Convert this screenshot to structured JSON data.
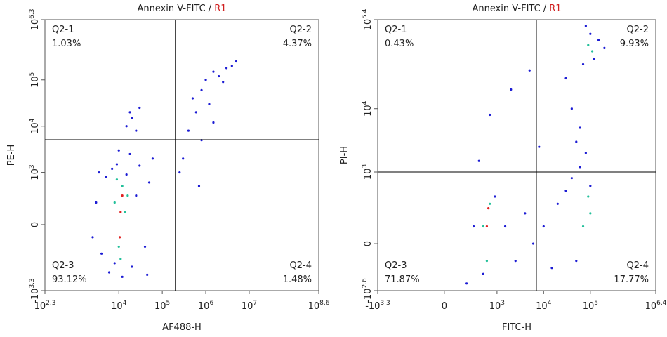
{
  "chart_data": [
    {
      "type": "scatter",
      "title": "Annexin V-FITC /",
      "population": "R1",
      "x_label": "AF488-H",
      "y_label": "PE-H",
      "xscale": "log",
      "yscale": "biex",
      "xlim": [
        199.5,
        398107171
      ],
      "ylim": [
        -1995.3,
        1995262
      ],
      "xticks": [
        {
          "value": 199.5,
          "label": "10",
          "exp": "2.3"
        },
        {
          "value": 10000,
          "label": "10",
          "exp": "4"
        },
        {
          "value": 100000,
          "label": "10",
          "exp": "5"
        },
        {
          "value": 1000000,
          "label": "10",
          "exp": "6"
        },
        {
          "value": 10000000,
          "label": "10",
          "exp": "7"
        },
        {
          "value": 398107171,
          "label": "10",
          "exp": "8.6"
        }
      ],
      "yticks": [
        {
          "value": -1995.3,
          "label": "-10",
          "exp": "3.3"
        },
        0,
        {
          "value": 1000,
          "label": "10",
          "exp": "3"
        },
        {
          "value": 10000,
          "label": "10",
          "exp": "4"
        },
        {
          "value": 100000,
          "label": "10",
          "exp": "5"
        },
        {
          "value": 1995262,
          "label": "10",
          "exp": "6.3"
        }
      ],
      "gate": {
        "x": 200000,
        "y": 5100
      },
      "quadrants": {
        "names": [
          "Q2-1",
          "Q2-2",
          "Q2-3",
          "Q2-4"
        ],
        "values": [
          1.03,
          4.37,
          93.12,
          1.48
        ],
        "value_labels": [
          "1.03%",
          "4.37%",
          "93.12%",
          "1.48%"
        ]
      },
      "series": [
        {
          "color": "#1c1cd4",
          "x": [
            3000,
            4000,
            5000,
            6000,
            7000,
            8000,
            9000,
            12000,
            15000,
            20000,
            25000,
            30000,
            40000,
            50000,
            3500,
            18000,
            60000,
            45000,
            2500,
            10000,
            1000000,
            1500000,
            2000000,
            3000000,
            4000000,
            800000,
            2500000,
            5000000,
            300000,
            400000,
            600000,
            500000,
            800000,
            1200000,
            250000,
            700000,
            1500000,
            15000,
            20000,
            18000,
            25000,
            30000
          ],
          "y": [
            200,
            -300,
            800,
            -800,
            1200,
            -500,
            1500,
            -1000,
            900,
            -600,
            300,
            1400,
            -200,
            600,
            1000,
            2500,
            2000,
            -900,
            -100,
            3000,
            100000,
            150000,
            120000,
            180000,
            200000,
            60000,
            90000,
            250000,
            2000,
            8000,
            20000,
            40000,
            5000,
            30000,
            1000,
            500,
            12000,
            10000,
            15000,
            20000,
            8000,
            25000
          ]
        },
        {
          "color": "#22c09a",
          "x": [
            8000,
            10000,
            12000,
            14000,
            9000,
            11000,
            16000
          ],
          "y": [
            200,
            -200,
            500,
            100,
            700,
            -400,
            300
          ]
        },
        {
          "color": "#e02020",
          "x": [
            11000,
            12000,
            10500
          ],
          "y": [
            100,
            300,
            -100
          ]
        }
      ]
    },
    {
      "type": "scatter",
      "title": "Annexin V-FITC /",
      "population": "R1",
      "x_label": "FITC-H",
      "y_label": "PI-H",
      "xscale": "biex",
      "yscale": "biex",
      "xlim": [
        -1995.3,
        2511886
      ],
      "ylim": [
        -398.1,
        251189
      ],
      "xticks": [
        {
          "value": -1995.3,
          "label": "-10",
          "exp": "3.3"
        },
        0,
        {
          "value": 1000,
          "label": "10",
          "exp": "3"
        },
        {
          "value": 10000,
          "label": "10",
          "exp": "4"
        },
        {
          "value": 100000,
          "label": "10",
          "exp": "5"
        },
        {
          "value": 2511886,
          "label": "10",
          "exp": "6.4"
        }
      ],
      "yticks": [
        {
          "value": -398.1,
          "label": "-10",
          "exp": "2.6"
        },
        0,
        {
          "value": 1000,
          "label": "10",
          "exp": "3"
        },
        {
          "value": 10000,
          "label": "10",
          "exp": "4"
        },
        {
          "value": 251189,
          "label": "10",
          "exp": "5.4"
        }
      ],
      "gate": {
        "x": 7000,
        "y": 1000
      },
      "quadrants": {
        "names": [
          "Q2-1",
          "Q2-2",
          "Q2-3",
          "Q2-4"
        ],
        "values": [
          0.43,
          9.93,
          71.87,
          17.77
        ],
        "value_labels": [
          "0.43%",
          "9.93%",
          "71.87%",
          "17.77%"
        ]
      },
      "series": [
        {
          "color": "#1c1cd4",
          "x": [
            300,
            500,
            900,
            1500,
            2500,
            4000,
            6000,
            10000,
            15000,
            20000,
            30000,
            40000,
            60000,
            80000,
            100000,
            50000,
            30000,
            40000,
            60000,
            70000,
            100000,
            150000,
            80000,
            120000,
            50000,
            200000,
            700,
            2000,
            5000,
            8000,
            400,
            200
          ],
          "y": [
            100,
            -200,
            400,
            100,
            -100,
            200,
            0,
            100,
            -150,
            300,
            500,
            800,
            1200,
            2000,
            600,
            -100,
            30000,
            10000,
            5000,
            50000,
            150000,
            120000,
            200000,
            60000,
            3000,
            90000,
            8000,
            20000,
            40000,
            2500,
            1500,
            -300
          ]
        },
        {
          "color": "#22c09a",
          "x": [
            500,
            700,
            600,
            90000,
            100000,
            70000,
            110000,
            90000
          ],
          "y": [
            100,
            300,
            -100,
            400,
            200,
            100,
            80000,
            100000
          ]
        },
        {
          "color": "#e02020",
          "x": [
            600,
            650
          ],
          "y": [
            100,
            250
          ]
        }
      ]
    }
  ]
}
